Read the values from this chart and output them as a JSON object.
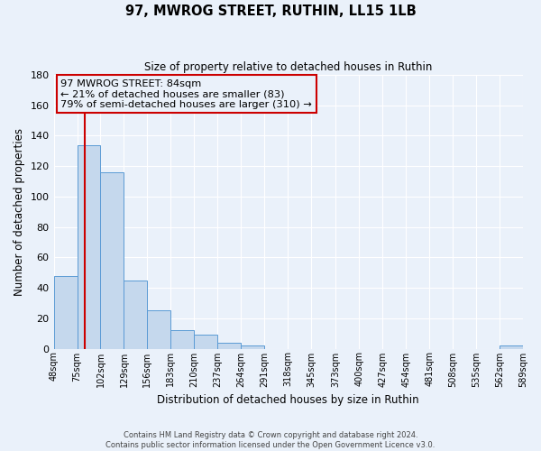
{
  "title": "97, MWROG STREET, RUTHIN, LL15 1LB",
  "subtitle": "Size of property relative to detached houses in Ruthin",
  "xlabel": "Distribution of detached houses by size in Ruthin",
  "ylabel": "Number of detached properties",
  "footnote1": "Contains HM Land Registry data © Crown copyright and database right 2024.",
  "footnote2": "Contains public sector information licensed under the Open Government Licence v3.0.",
  "bar_edges": [
    48,
    75,
    102,
    129,
    156,
    183,
    210,
    237,
    264,
    291,
    318,
    345,
    373,
    400,
    427,
    454,
    481,
    508,
    535,
    562,
    589
  ],
  "bar_heights": [
    48,
    134,
    116,
    45,
    25,
    12,
    9,
    4,
    2,
    0,
    0,
    0,
    0,
    0,
    0,
    0,
    0,
    0,
    0,
    2
  ],
  "bar_color": "#c5d8ed",
  "bar_edge_color": "#5b9bd5",
  "ylim": [
    0,
    180
  ],
  "yticks": [
    0,
    20,
    40,
    60,
    80,
    100,
    120,
    140,
    160,
    180
  ],
  "xtick_labels": [
    "48sqm",
    "75sqm",
    "102sqm",
    "129sqm",
    "156sqm",
    "183sqm",
    "210sqm",
    "237sqm",
    "264sqm",
    "291sqm",
    "318sqm",
    "345sqm",
    "373sqm",
    "400sqm",
    "427sqm",
    "454sqm",
    "481sqm",
    "508sqm",
    "535sqm",
    "562sqm",
    "589sqm"
  ],
  "property_line_x": 84,
  "property_line_color": "#cc0000",
  "annotation_title": "97 MWROG STREET: 84sqm",
  "annotation_line1": "← 21% of detached houses are smaller (83)",
  "annotation_line2": "79% of semi-detached houses are larger (310) →",
  "annotation_box_color": "#cc0000",
  "background_color": "#eaf1fa",
  "grid_color": "#ffffff"
}
